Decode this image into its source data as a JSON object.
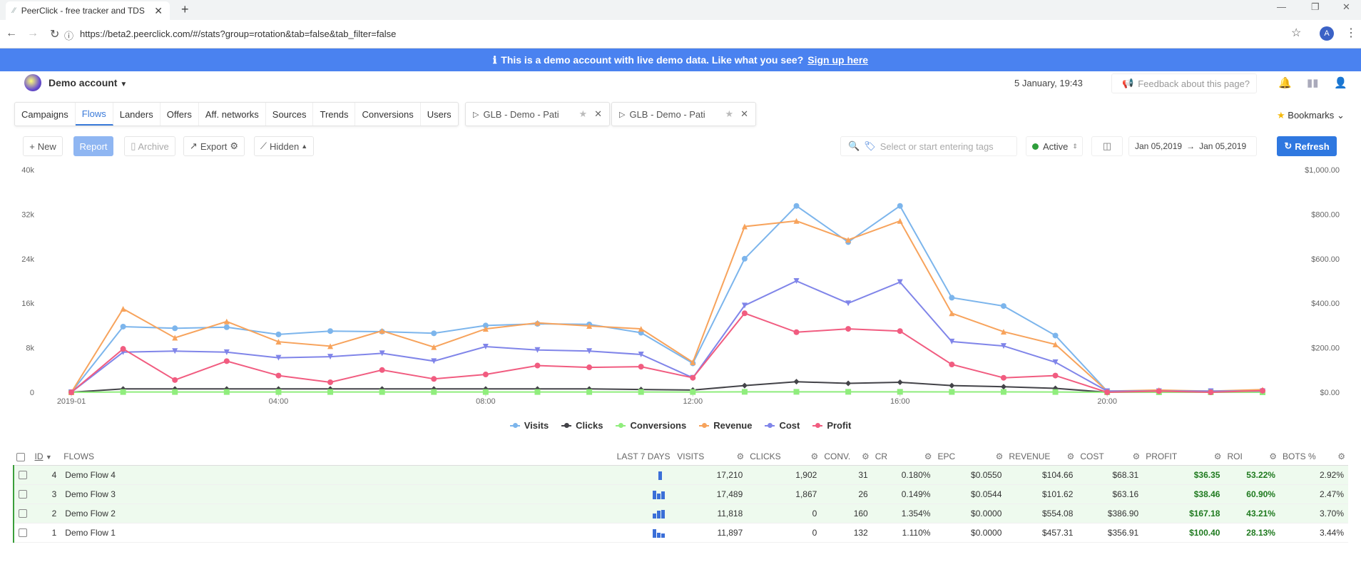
{
  "browser": {
    "tab_title": "PeerClick - free tracker and TDS",
    "url": "https://beta2.peerclick.com/#/stats?group=rotation&tab=false&tab_filter=false",
    "profile_initial": "A"
  },
  "banner": {
    "text": "This is a demo account with live demo data. Like what you see?",
    "link": "Sign up here"
  },
  "header": {
    "account": "Demo account",
    "datetime": "5 January, 19:43",
    "feedback": "Feedback about this page?"
  },
  "nav_tabs": [
    "Campaigns",
    "Flows",
    "Landers",
    "Offers",
    "Aff. networks",
    "Sources",
    "Trends",
    "Conversions",
    "Users"
  ],
  "report_tabs": [
    "GLB - Demo - Pati",
    "GLB - Demo - Pati"
  ],
  "bookmarks": "Bookmarks",
  "toolbar": {
    "new": "New",
    "report": "Report",
    "archive": "Archive",
    "export": "Export",
    "hidden": "Hidden",
    "tags_placeholder": "Select or start entering tags",
    "status": "Active",
    "date_from": "Jan 05,2019",
    "date_to": "Jan 05,2019",
    "refresh": "Refresh"
  },
  "chart_data": {
    "type": "line",
    "x_tick_labels": [
      "2019-01",
      "04:00",
      "08:00",
      "12:00",
      "16:00",
      "20:00"
    ],
    "y_left_ticks": [
      "0",
      "8k",
      "16k",
      "24k",
      "32k",
      "40k"
    ],
    "y_right_ticks": [
      "$0.00",
      "$200.00",
      "$400.00",
      "$600.00",
      "$800.00",
      "$1,000.00"
    ],
    "ylim_left": [
      0,
      40000
    ],
    "ylim_right": [
      0,
      1000
    ],
    "x": [
      0,
      1,
      2,
      3,
      4,
      5,
      6,
      7,
      8,
      9,
      10,
      11,
      12,
      13,
      14,
      15,
      16,
      17,
      18,
      19,
      20,
      21,
      22,
      23
    ],
    "series": [
      {
        "name": "Visits",
        "axis": "left",
        "color": "#7cb5ec",
        "marker": "circle",
        "values": [
          0,
          11800,
          11500,
          11700,
          10400,
          11000,
          10900,
          10600,
          12000,
          12300,
          12200,
          10700,
          5200,
          24000,
          33500,
          27000,
          33500,
          17000,
          15500,
          10200,
          200,
          200,
          200,
          200
        ]
      },
      {
        "name": "Clicks",
        "axis": "left",
        "color": "#434348",
        "marker": "diamond",
        "values": [
          0,
          600,
          600,
          600,
          600,
          600,
          600,
          600,
          600,
          600,
          600,
          500,
          400,
          1200,
          1900,
          1600,
          1800,
          1200,
          1000,
          700,
          0,
          0,
          0,
          0
        ]
      },
      {
        "name": "Conversions",
        "axis": "left",
        "color": "#90ed7d",
        "marker": "square",
        "values": [
          0,
          50,
          50,
          50,
          50,
          50,
          50,
          50,
          50,
          50,
          50,
          50,
          50,
          80,
          80,
          80,
          80,
          60,
          60,
          50,
          0,
          0,
          0,
          0
        ]
      },
      {
        "name": "Revenue",
        "axis": "right",
        "color": "#f7a35c",
        "marker": "triangle",
        "values": [
          0,
          375,
          245,
          318,
          227,
          207,
          276,
          203,
          285,
          312,
          298,
          285,
          135,
          745,
          770,
          685,
          770,
          355,
          272,
          215,
          5,
          10,
          5,
          12
        ]
      },
      {
        "name": "Cost",
        "axis": "right",
        "color": "#8085e9",
        "marker": "triangle-down",
        "values": [
          0,
          180,
          185,
          180,
          155,
          160,
          175,
          140,
          205,
          190,
          185,
          170,
          65,
          390,
          500,
          400,
          495,
          228,
          208,
          135,
          5,
          5,
          5,
          5
        ]
      },
      {
        "name": "Profit",
        "axis": "right",
        "color": "#f15c80",
        "marker": "circle",
        "values": [
          0,
          195,
          55,
          140,
          75,
          45,
          100,
          60,
          80,
          120,
          112,
          115,
          65,
          355,
          270,
          285,
          275,
          125,
          65,
          75,
          0,
          5,
          0,
          7
        ]
      }
    ]
  },
  "table": {
    "columns": [
      "ID",
      "FLOWS",
      "LAST 7 DAYS",
      "VISITS",
      "CLICKS",
      "CONV.",
      "CR",
      "EPC",
      "REVENUE",
      "COST",
      "PROFIT",
      "ROI",
      "BOTS %"
    ],
    "rows": [
      {
        "id": "4",
        "name": "Demo Flow 4",
        "visits": "17,210",
        "clicks": "1,902",
        "conv": "31",
        "cr": "0.180%",
        "epc": "$0.0550",
        "revenue": "$104.66",
        "cost": "$68.31",
        "profit": "$36.35",
        "roi": "53.22%",
        "bots": "2.92%",
        "spark": [
          0,
          0,
          1
        ]
      },
      {
        "id": "3",
        "name": "Demo Flow 3",
        "visits": "17,489",
        "clicks": "1,867",
        "conv": "26",
        "cr": "0.149%",
        "epc": "$0.0544",
        "revenue": "$101.62",
        "cost": "$63.16",
        "profit": "$38.46",
        "roi": "60.90%",
        "bots": "2.47%",
        "spark": [
          1,
          0.7,
          0.9
        ]
      },
      {
        "id": "2",
        "name": "Demo Flow 2",
        "visits": "11,818",
        "clicks": "0",
        "conv": "160",
        "cr": "1.354%",
        "epc": "$0.0000",
        "revenue": "$554.08",
        "cost": "$386.90",
        "profit": "$167.18",
        "roi": "43.21%",
        "bots": "3.70%",
        "spark": [
          0.6,
          0.9,
          1
        ]
      },
      {
        "id": "1",
        "name": "Demo Flow 1",
        "visits": "11,897",
        "clicks": "0",
        "conv": "132",
        "cr": "1.110%",
        "epc": "$0.0000",
        "revenue": "$457.31",
        "cost": "$356.91",
        "profit": "$100.40",
        "roi": "28.13%",
        "bots": "3.44%",
        "spark": [
          1,
          0.6,
          0.5
        ]
      }
    ]
  }
}
